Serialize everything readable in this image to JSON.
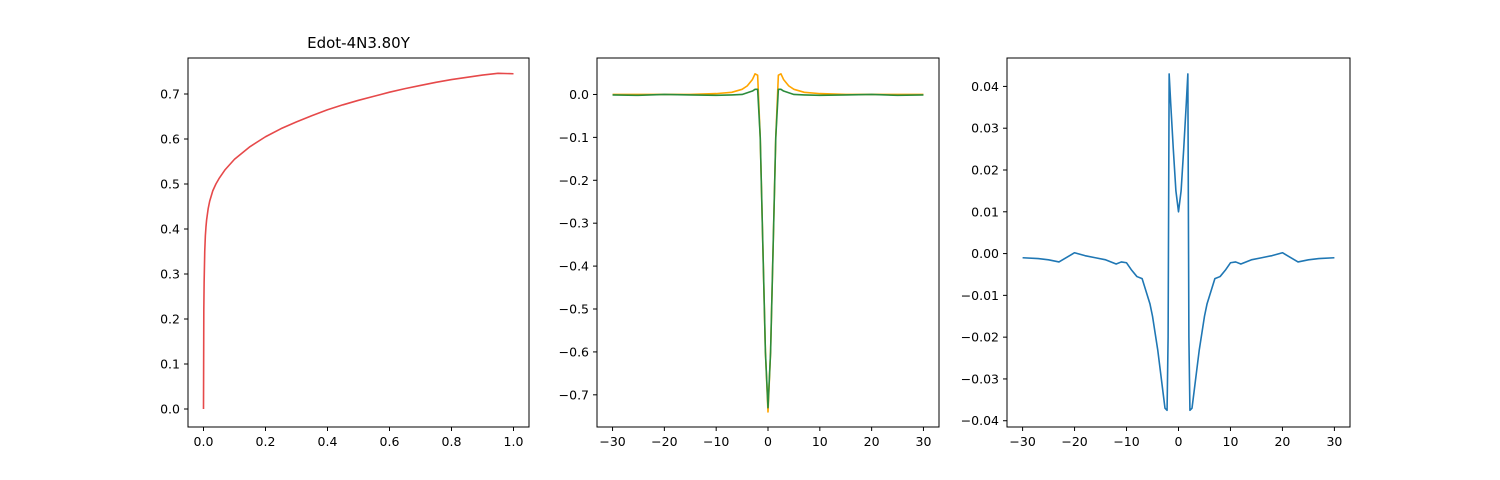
{
  "chart_data": [
    {
      "type": "line",
      "title": "Edot-4N3.80Y",
      "xlabel": "",
      "ylabel": "",
      "xlim": [
        -0.05,
        1.05
      ],
      "ylim": [
        -0.04,
        0.78
      ],
      "xticks": [
        0.0,
        0.2,
        0.4,
        0.6,
        0.8,
        1.0
      ],
      "xtick_labels": [
        "0.0",
        "0.2",
        "0.4",
        "0.6",
        "0.8",
        "1.0"
      ],
      "yticks": [
        0.0,
        0.1,
        0.2,
        0.3,
        0.4,
        0.5,
        0.6,
        0.7
      ],
      "ytick_labels": [
        "0.0",
        "0.1",
        "0.2",
        "0.3",
        "0.4",
        "0.5",
        "0.6",
        "0.7"
      ],
      "grid": false,
      "series": [
        {
          "color": "#e6494a",
          "x": [
            0,
            0.001,
            0.002,
            0.004,
            0.006,
            0.008,
            0.01,
            0.015,
            0.02,
            0.03,
            0.04,
            0.05,
            0.07,
            0.1,
            0.15,
            0.2,
            0.25,
            0.3,
            0.35,
            0.4,
            0.45,
            0.5,
            0.55,
            0.6,
            0.65,
            0.7,
            0.75,
            0.8,
            0.85,
            0.9,
            0.95,
            1.0
          ],
          "y": [
            0.0,
            0.22,
            0.28,
            0.35,
            0.385,
            0.405,
            0.42,
            0.445,
            0.462,
            0.485,
            0.5,
            0.512,
            0.532,
            0.555,
            0.583,
            0.605,
            0.623,
            0.638,
            0.652,
            0.665,
            0.676,
            0.686,
            0.695,
            0.704,
            0.712,
            0.719,
            0.726,
            0.732,
            0.737,
            0.742,
            0.746,
            0.745
          ]
        }
      ]
    },
    {
      "type": "line",
      "title": "",
      "xlabel": "",
      "ylabel": "",
      "xlim": [
        -33,
        33
      ],
      "ylim": [
        -0.775,
        0.085
      ],
      "xticks": [
        -30,
        -20,
        -10,
        0,
        10,
        20,
        30
      ],
      "xtick_labels": [
        "−30",
        "−20",
        "−10",
        "0",
        "10",
        "20",
        "30"
      ],
      "yticks": [
        0.0,
        -0.1,
        -0.2,
        -0.3,
        -0.4,
        -0.5,
        -0.6,
        -0.7
      ],
      "ytick_labels": [
        "0.0",
        "−0.1",
        "−0.2",
        "−0.3",
        "−0.4",
        "−0.5",
        "−0.6",
        "−0.7"
      ],
      "grid": false,
      "series": [
        {
          "color": "#ffa500",
          "x": [
            -30,
            -25,
            -20,
            -15,
            -10,
            -7,
            -5,
            -4,
            -3,
            -2.5,
            -2,
            -1.5,
            -1,
            -0.5,
            0,
            0.5,
            1,
            1.5,
            2,
            2.5,
            3,
            4,
            5,
            7,
            10,
            15,
            20,
            25,
            30
          ],
          "y": [
            0.0,
            0.0,
            0.0,
            0.0,
            0.002,
            0.005,
            0.012,
            0.02,
            0.035,
            0.048,
            0.045,
            -0.1,
            -0.35,
            -0.6,
            -0.74,
            -0.6,
            -0.35,
            -0.1,
            0.045,
            0.048,
            0.035,
            0.02,
            0.012,
            0.005,
            0.002,
            0.0,
            0.0,
            0.0,
            0.0
          ]
        },
        {
          "color": "#2c8c3c",
          "x": [
            -30,
            -25,
            -20,
            -15,
            -10,
            -7,
            -5,
            -4,
            -3,
            -2.5,
            -2,
            -1.5,
            -1,
            -0.5,
            0,
            0.5,
            1,
            1.5,
            2,
            2.5,
            3,
            4,
            5,
            7,
            10,
            15,
            20,
            25,
            30
          ],
          "y": [
            -0.001,
            -0.002,
            0.0,
            -0.001,
            -0.002,
            -0.001,
            0.0,
            0.004,
            0.008,
            0.012,
            0.012,
            -0.1,
            -0.35,
            -0.6,
            -0.73,
            -0.6,
            -0.35,
            -0.1,
            0.012,
            0.012,
            0.008,
            0.004,
            0.0,
            -0.001,
            -0.002,
            -0.001,
            0.0,
            -0.002,
            -0.001
          ]
        }
      ]
    },
    {
      "type": "line",
      "title": "",
      "xlabel": "",
      "ylabel": "",
      "xlim": [
        -33,
        33
      ],
      "ylim": [
        -0.0415,
        0.0468
      ],
      "xticks": [
        -30,
        -20,
        -10,
        0,
        10,
        20,
        30
      ],
      "xtick_labels": [
        "−30",
        "−20",
        "−10",
        "0",
        "10",
        "20",
        "30"
      ],
      "yticks": [
        0.04,
        0.03,
        0.02,
        0.01,
        0.0,
        -0.01,
        -0.02,
        -0.03,
        -0.04
      ],
      "ytick_labels": [
        "0.04",
        "0.03",
        "0.02",
        "0.01",
        "0.00",
        "−0.01",
        "−0.02",
        "−0.03",
        "−0.04"
      ],
      "grid": false,
      "series": [
        {
          "color": "#1f77b4",
          "x": [
            -30,
            -27,
            -25,
            -23,
            -20,
            -18,
            -16,
            -14,
            -12,
            -11,
            -10,
            -9,
            -8,
            -7,
            -6,
            -5.5,
            -5,
            -4.5,
            -4,
            -3.5,
            -3,
            -2.6,
            -2.2,
            -2.0,
            -1.8,
            -1.5,
            -1.0,
            -0.5,
            0,
            0.5,
            1.0,
            1.5,
            1.8,
            2.0,
            2.2,
            2.6,
            3,
            3.5,
            4,
            4.5,
            5,
            5.5,
            6,
            7,
            8,
            9,
            10,
            11,
            12,
            14,
            16,
            18,
            20,
            23,
            25,
            27,
            30
          ],
          "y": [
            -0.001,
            -0.0012,
            -0.0015,
            -0.002,
            0.0002,
            -0.0005,
            -0.001,
            -0.0015,
            -0.0025,
            -0.002,
            -0.0022,
            -0.004,
            -0.0055,
            -0.006,
            -0.01,
            -0.012,
            -0.015,
            -0.019,
            -0.023,
            -0.028,
            -0.033,
            -0.037,
            -0.0375,
            -0.02,
            0.043,
            0.036,
            0.025,
            0.015,
            0.01,
            0.015,
            0.025,
            0.036,
            0.043,
            -0.02,
            -0.0375,
            -0.037,
            -0.033,
            -0.028,
            -0.023,
            -0.019,
            -0.015,
            -0.012,
            -0.01,
            -0.006,
            -0.0055,
            -0.004,
            -0.0022,
            -0.002,
            -0.0025,
            -0.0015,
            -0.001,
            -0.0005,
            0.0002,
            -0.002,
            -0.0015,
            -0.0012,
            -0.001
          ]
        }
      ]
    }
  ]
}
